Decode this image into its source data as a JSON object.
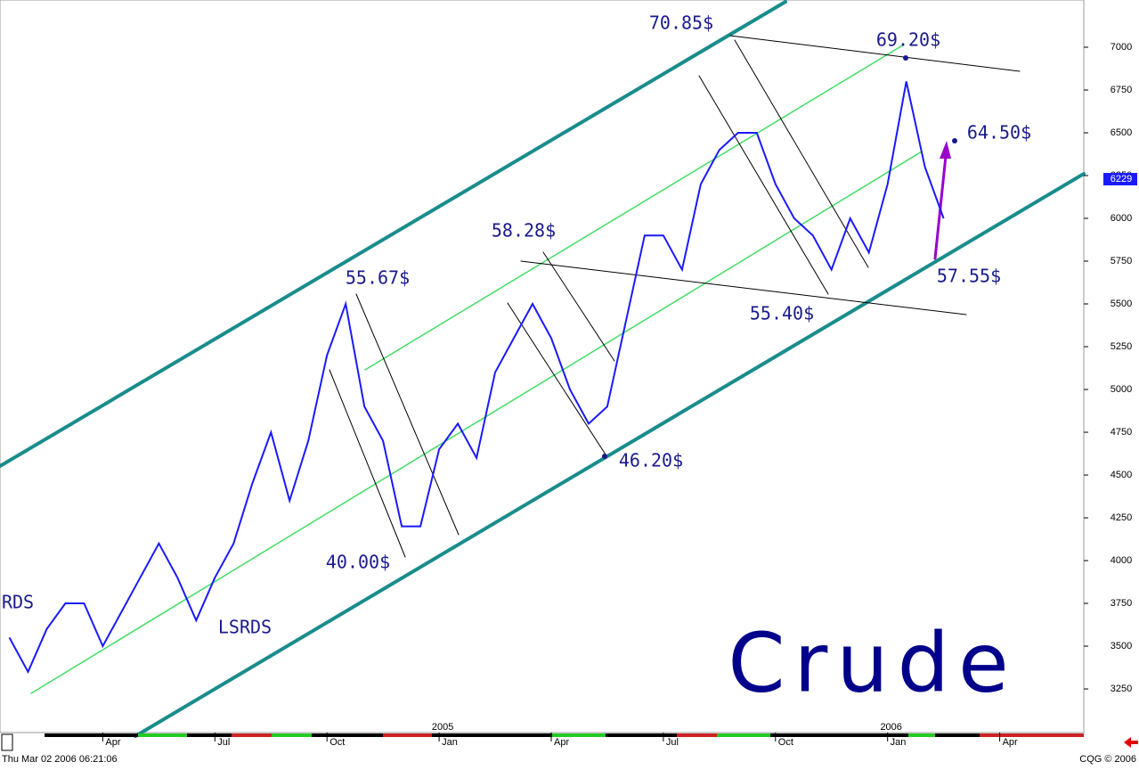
{
  "chart_data": {
    "type": "line",
    "title": "Crude",
    "categories": [
      null,
      null,
      null,
      null,
      null,
      "Apr",
      null,
      null,
      null,
      null,
      null,
      "Jul",
      null,
      null,
      null,
      null,
      null,
      "Oct",
      null,
      null,
      null,
      null,
      null,
      "Jan",
      null,
      null,
      null,
      null,
      null,
      "Apr",
      null,
      null,
      null,
      null,
      null,
      "Jul",
      null,
      null,
      null,
      null,
      null,
      "Oct",
      null,
      null,
      null,
      null,
      null,
      "Jan",
      null,
      null,
      null,
      null,
      null,
      "Apr",
      null,
      null,
      null,
      null
    ],
    "x_group_labels": [
      null,
      null,
      null,
      null,
      null,
      null,
      null,
      null,
      null,
      null,
      null,
      null,
      null,
      null,
      null,
      null,
      null,
      null,
      null,
      null,
      null,
      null,
      null,
      "2005",
      null,
      null,
      null,
      null,
      null,
      null,
      null,
      null,
      null,
      null,
      null,
      null,
      null,
      null,
      null,
      null,
      null,
      null,
      null,
      null,
      null,
      null,
      null,
      "2006",
      null,
      null,
      null,
      null,
      null,
      null,
      null,
      null,
      null,
      null
    ],
    "series": [
      {
        "name": "Crude",
        "color": "#1a1aff",
        "values": [
          3550,
          3350,
          3600,
          3750,
          3750,
          3500,
          3700,
          3900,
          4100,
          3900,
          3650,
          3900,
          4100,
          4450,
          4750,
          4350,
          4700,
          5200,
          5500,
          4900,
          4700,
          4200,
          4200,
          4650,
          4800,
          4600,
          5100,
          5300,
          5500,
          5300,
          5000,
          4800,
          4900,
          5400,
          5900,
          5900,
          5700,
          6200,
          6400,
          6500,
          6500,
          6200,
          6000,
          5900,
          5700,
          6000,
          5800,
          6200,
          6800,
          6300,
          6000,
          null,
          null,
          null,
          null,
          null,
          null,
          null
        ]
      }
    ],
    "last_value": 6229,
    "ylim": [
      2995,
      7276
    ],
    "yticks": [
      3250,
      3500,
      3750,
      4000,
      4250,
      4500,
      4750,
      5000,
      5250,
      5500,
      5750,
      6000,
      6250,
      6500,
      6750,
      7000
    ],
    "annotations": [
      "70.85$",
      "69.20$",
      "64.50$",
      "58.28$",
      "55.67$",
      "55.40$",
      "57.55$",
      "46.20$",
      "40.00$",
      "RDS",
      "LSRDS"
    ],
    "timestamp": "Thu Mar 02 2006 06:21:06",
    "footer": "CQG © 2006"
  }
}
